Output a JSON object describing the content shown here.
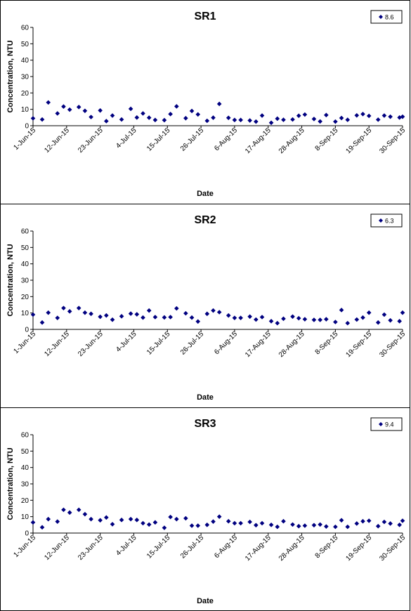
{
  "chart_data": [
    {
      "type": "scatter",
      "title": "SR1",
      "xlabel": "Date",
      "ylabel": "Concentration, NTU",
      "ylim": [
        0,
        60
      ],
      "yticks": [
        "0",
        "10",
        "20",
        "30",
        "40",
        "50",
        "60"
      ],
      "xlim": [
        "2015-06-01",
        "2015-09-30"
      ],
      "xticks": [
        "1-Jun-15",
        "12-Jun-15",
        "23-Jun-15",
        "4-Jul-15",
        "15-Jul-15",
        "26-Jul-15",
        "6-Aug-15",
        "17-Aug-15",
        "28-Aug-15",
        "8-Sep-15",
        "19-Sep-15",
        "30-Sep-15"
      ],
      "grid": false,
      "legend_position": "top-right",
      "series": [
        {
          "name": "8.6",
          "color": "#000080",
          "marker": "diamond",
          "x": [
            "2015-06-01",
            "2015-06-04",
            "2015-06-06",
            "2015-06-09",
            "2015-06-11",
            "2015-06-13",
            "2015-06-16",
            "2015-06-18",
            "2015-06-20",
            "2015-06-23",
            "2015-06-25",
            "2015-06-27",
            "2015-06-30",
            "2015-07-03",
            "2015-07-05",
            "2015-07-07",
            "2015-07-09",
            "2015-07-11",
            "2015-07-14",
            "2015-07-16",
            "2015-07-18",
            "2015-07-21",
            "2015-07-23",
            "2015-07-25",
            "2015-07-28",
            "2015-07-30",
            "2015-08-01",
            "2015-08-04",
            "2015-08-06",
            "2015-08-08",
            "2015-08-11",
            "2015-08-13",
            "2015-08-15",
            "2015-08-18",
            "2015-08-20",
            "2015-08-22",
            "2015-08-25",
            "2015-08-27",
            "2015-08-29",
            "2015-09-01",
            "2015-09-03",
            "2015-09-05",
            "2015-09-08",
            "2015-09-10",
            "2015-09-12",
            "2015-09-15",
            "2015-09-17",
            "2015-09-19",
            "2015-09-22",
            "2015-09-24",
            "2015-09-26",
            "2015-09-29",
            "2015-09-30"
          ],
          "y": [
            4.5,
            3.8,
            14.2,
            7.5,
            11.7,
            9.8,
            11.4,
            9.1,
            5.3,
            9.3,
            2.8,
            6.2,
            3.8,
            10.3,
            5,
            7.5,
            4.9,
            3.5,
            3.4,
            7.1,
            11.8,
            4.6,
            9,
            6.9,
            3,
            4.9,
            13.3,
            4.8,
            3.5,
            3.5,
            3.2,
            2.5,
            6.2,
            1.8,
            4.3,
            3.6,
            3.8,
            6.1,
            6.8,
            4.1,
            2.6,
            6.5,
            2.5,
            4.7,
            3.6,
            6.3,
            7.1,
            6,
            3.7,
            6.2,
            5.5,
            5,
            5.5
          ]
        }
      ]
    },
    {
      "type": "scatter",
      "title": "SR2",
      "xlabel": "Date",
      "ylabel": "Concentration, NTU",
      "ylim": [
        0,
        60
      ],
      "yticks": [
        "0",
        "10",
        "20",
        "30",
        "40",
        "50",
        "60"
      ],
      "xlim": [
        "2015-06-01",
        "2015-09-30"
      ],
      "xticks": [
        "1-Jun-15",
        "12-Jun-15",
        "23-Jun-15",
        "4-Jul-15",
        "15-Jul-15",
        "26-Jul-15",
        "6-Aug-15",
        "17-Aug-15",
        "28-Aug-15",
        "8-Sep-15",
        "19-Sep-15",
        "30-Sep-15"
      ],
      "grid": false,
      "legend_position": "top-right",
      "series": [
        {
          "name": "6.3",
          "color": "#000080",
          "marker": "diamond",
          "x": [
            "2015-06-01",
            "2015-06-04",
            "2015-06-06",
            "2015-06-09",
            "2015-06-11",
            "2015-06-13",
            "2015-06-16",
            "2015-06-18",
            "2015-06-20",
            "2015-06-23",
            "2015-06-25",
            "2015-06-27",
            "2015-06-30",
            "2015-07-03",
            "2015-07-05",
            "2015-07-07",
            "2015-07-09",
            "2015-07-11",
            "2015-07-14",
            "2015-07-16",
            "2015-07-18",
            "2015-07-21",
            "2015-07-23",
            "2015-07-25",
            "2015-07-28",
            "2015-07-30",
            "2015-08-01",
            "2015-08-04",
            "2015-08-06",
            "2015-08-08",
            "2015-08-11",
            "2015-08-13",
            "2015-08-15",
            "2015-08-18",
            "2015-08-20",
            "2015-08-22",
            "2015-08-25",
            "2015-08-27",
            "2015-08-29",
            "2015-09-01",
            "2015-09-03",
            "2015-09-05",
            "2015-09-08",
            "2015-09-10",
            "2015-09-12",
            "2015-09-15",
            "2015-09-17",
            "2015-09-19",
            "2015-09-22",
            "2015-09-24",
            "2015-09-26",
            "2015-09-29",
            "2015-09-30"
          ],
          "y": [
            9,
            4.2,
            10.2,
            7,
            13,
            11,
            13,
            10.2,
            9.5,
            7.7,
            8.5,
            5.9,
            8,
            9.6,
            9.2,
            7.2,
            11.5,
            7.5,
            7.3,
            7.5,
            12.8,
            9.8,
            7.2,
            4.8,
            9.5,
            11.5,
            10.5,
            8.5,
            7,
            7,
            7.8,
            6,
            7.5,
            5,
            3.8,
            6.5,
            7.8,
            6.8,
            6.2,
            5.8,
            5.8,
            6.2,
            4.5,
            11.8,
            3.8,
            6,
            7.2,
            10.2,
            4.2,
            9,
            5.5,
            5,
            10.2
          ]
        }
      ]
    },
    {
      "type": "scatter",
      "title": "SR3",
      "xlabel": "Date",
      "ylabel": "Concentration, NTU",
      "ylim": [
        0,
        60
      ],
      "yticks": [
        "0",
        "10",
        "20",
        "30",
        "40",
        "50",
        "60"
      ],
      "xlim": [
        "2015-06-01",
        "2015-09-30"
      ],
      "xticks": [
        "1-Jun-15",
        "12-Jun-15",
        "23-Jun-15",
        "4-Jul-15",
        "15-Jul-15",
        "26-Jul-15",
        "6-Aug-15",
        "17-Aug-15",
        "28-Aug-15",
        "8-Sep-15",
        "19-Sep-15",
        "30-Sep-15"
      ],
      "grid": false,
      "legend_position": "top-right",
      "series": [
        {
          "name": "9.4",
          "color": "#000080",
          "marker": "diamond",
          "x": [
            "2015-06-01",
            "2015-06-04",
            "2015-06-06",
            "2015-06-09",
            "2015-06-11",
            "2015-06-13",
            "2015-06-16",
            "2015-06-18",
            "2015-06-20",
            "2015-06-23",
            "2015-06-25",
            "2015-06-27",
            "2015-06-30",
            "2015-07-03",
            "2015-07-05",
            "2015-07-07",
            "2015-07-09",
            "2015-07-11",
            "2015-07-14",
            "2015-07-16",
            "2015-07-18",
            "2015-07-21",
            "2015-07-23",
            "2015-07-25",
            "2015-07-28",
            "2015-07-30",
            "2015-08-01",
            "2015-08-04",
            "2015-08-06",
            "2015-08-08",
            "2015-08-11",
            "2015-08-13",
            "2015-08-15",
            "2015-08-18",
            "2015-08-20",
            "2015-08-22",
            "2015-08-25",
            "2015-08-27",
            "2015-08-29",
            "2015-09-01",
            "2015-09-03",
            "2015-09-05",
            "2015-09-08",
            "2015-09-10",
            "2015-09-12",
            "2015-09-15",
            "2015-09-17",
            "2015-09-19",
            "2015-09-22",
            "2015-09-24",
            "2015-09-26",
            "2015-09-29",
            "2015-09-30"
          ],
          "y": [
            6.5,
            3.5,
            8.5,
            7,
            14.2,
            12.5,
            14.2,
            11.5,
            8.5,
            7.8,
            9.5,
            5.4,
            8,
            8.5,
            8,
            6,
            5.2,
            6.5,
            3.2,
            9.8,
            8.5,
            9,
            4.5,
            4.5,
            5,
            7,
            10,
            7.2,
            6,
            6,
            6.8,
            4.8,
            6,
            5,
            3.8,
            7.2,
            5.2,
            4.2,
            4.5,
            4.8,
            5.2,
            4,
            3.8,
            7.8,
            3.8,
            5.8,
            7.2,
            7.5,
            4.2,
            6.8,
            5.8,
            5,
            7.5
          ]
        }
      ]
    }
  ]
}
